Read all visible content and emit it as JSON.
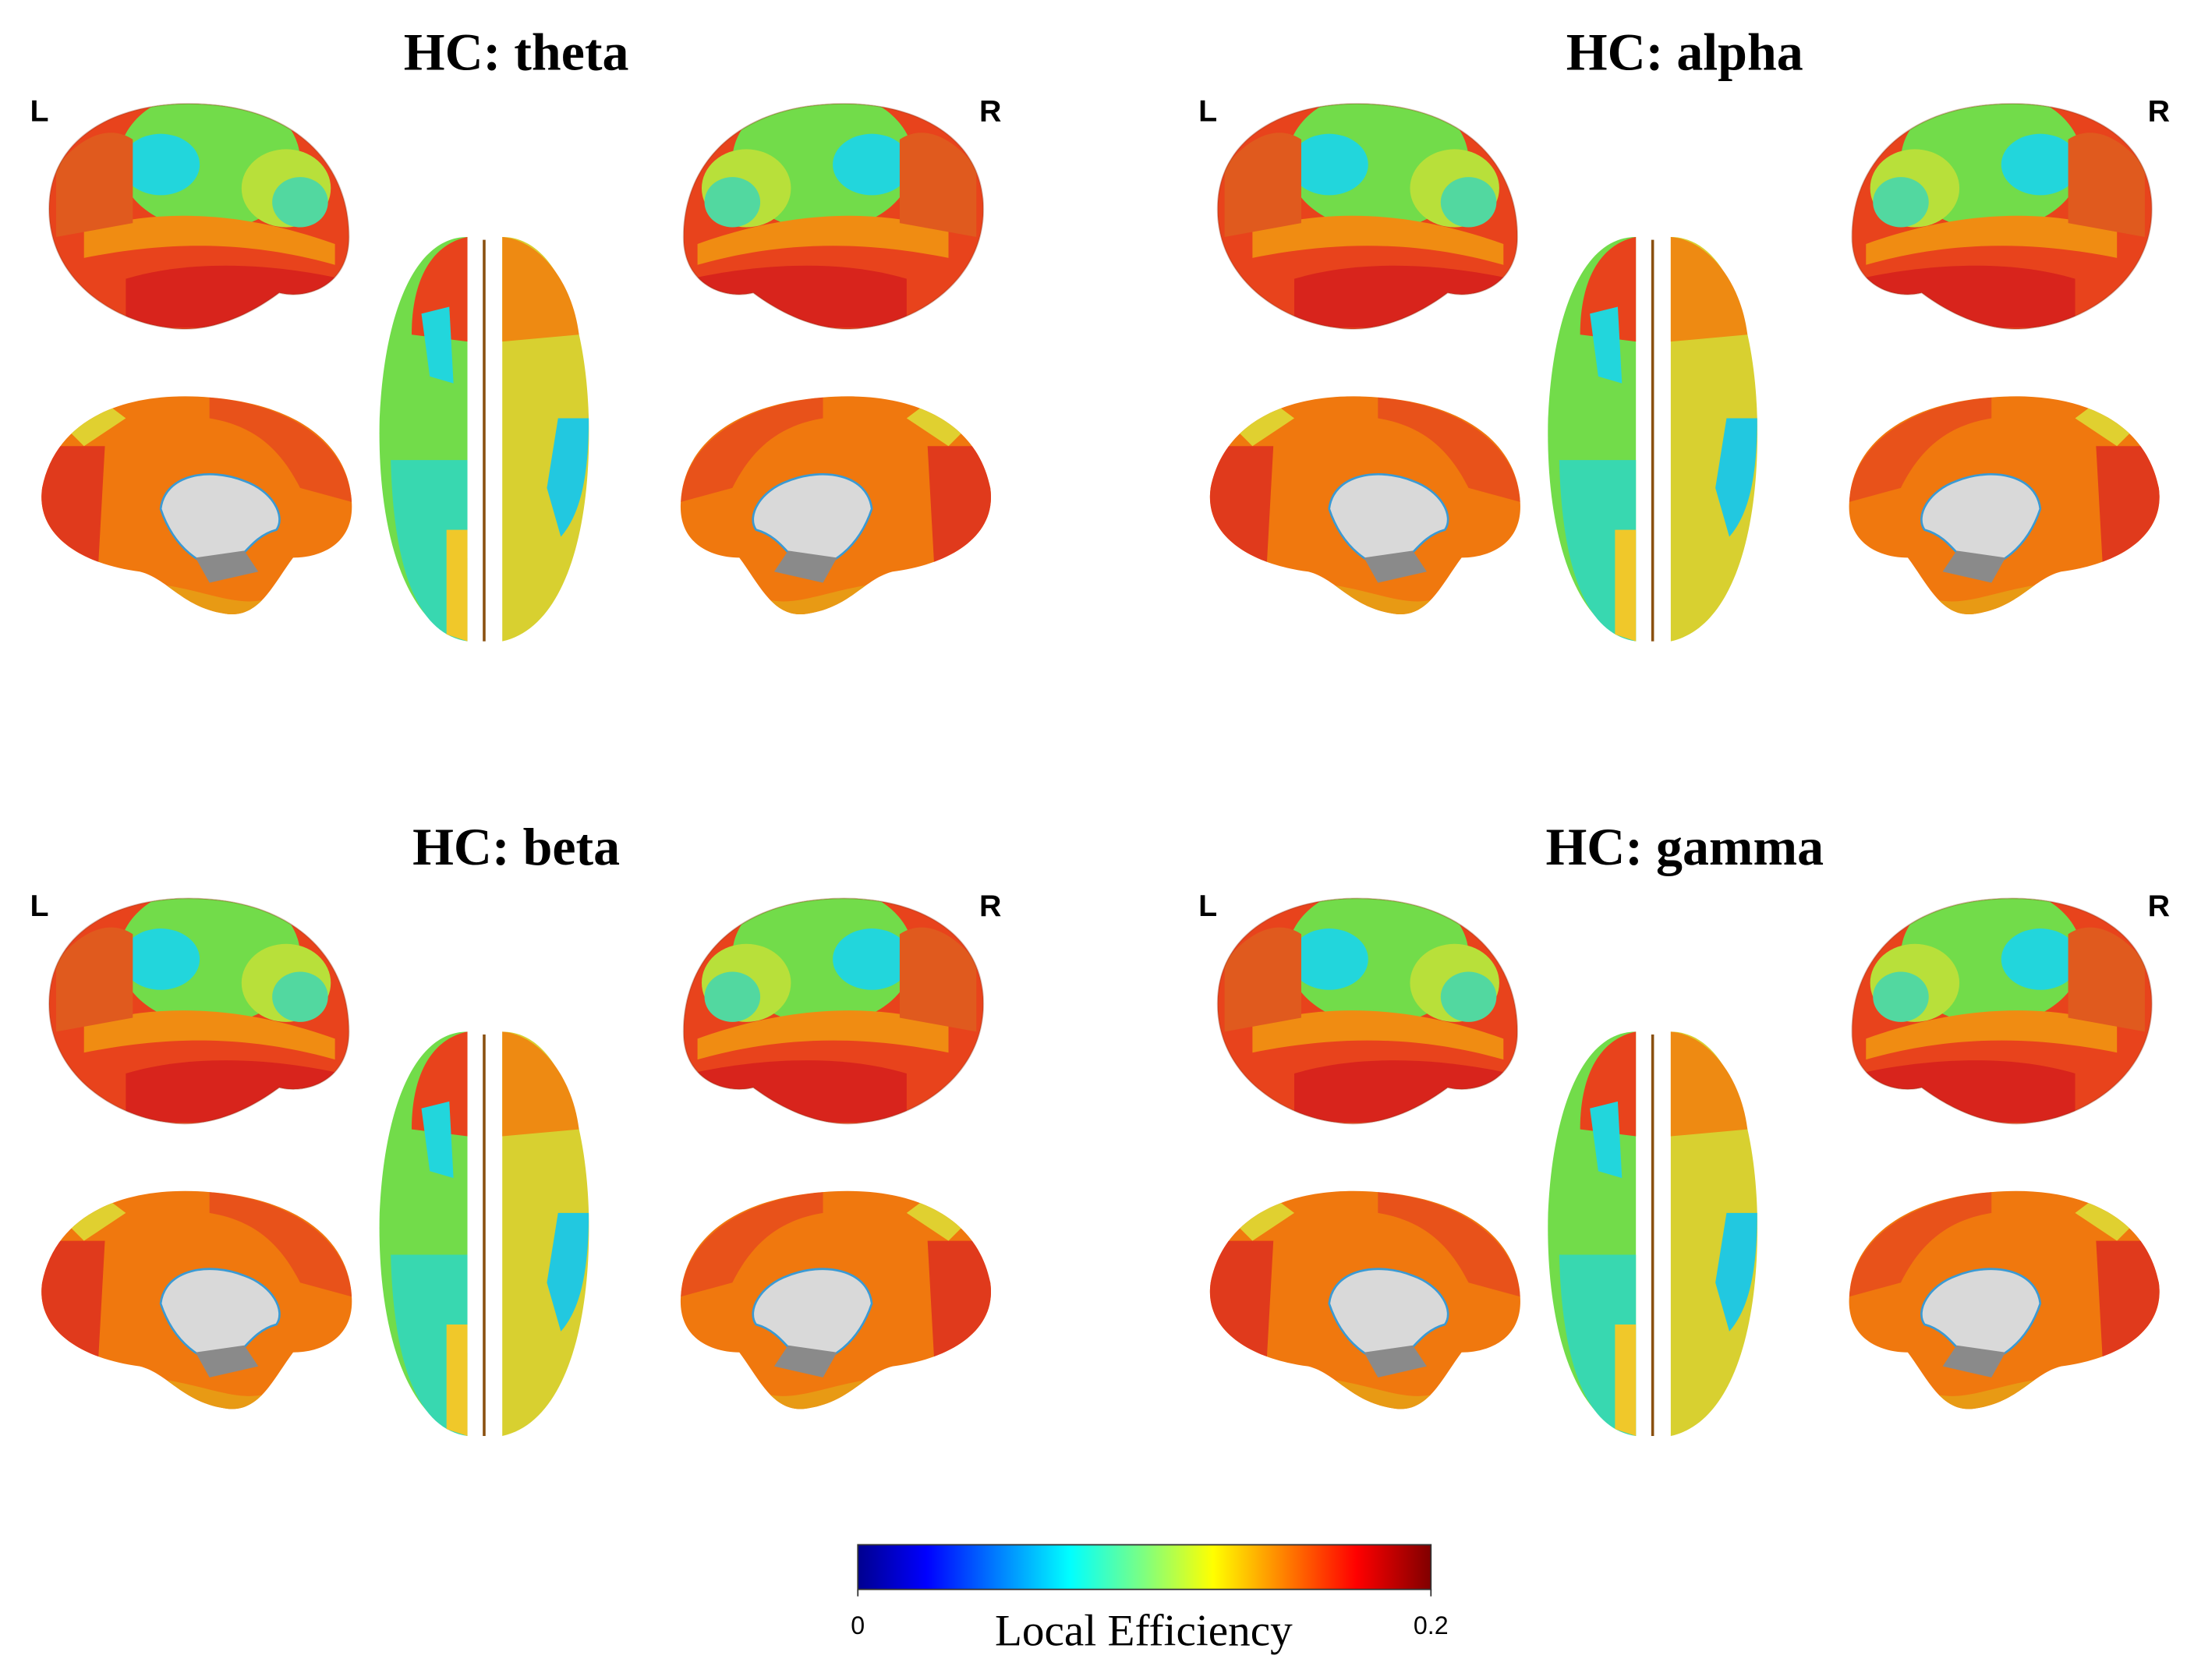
{
  "panels": [
    {
      "title": "HC: theta",
      "left": "L",
      "right": "R"
    },
    {
      "title": "HC: alpha",
      "left": "L",
      "right": "R"
    },
    {
      "title": "HC: beta",
      "left": "L",
      "right": "R"
    },
    {
      "title": "HC: gamma",
      "left": "L",
      "right": "R"
    }
  ],
  "colorbar": {
    "label": "Local Efficiency",
    "lim": [
      0,
      0.2
    ],
    "ticks": [
      0,
      0.2
    ]
  }
}
